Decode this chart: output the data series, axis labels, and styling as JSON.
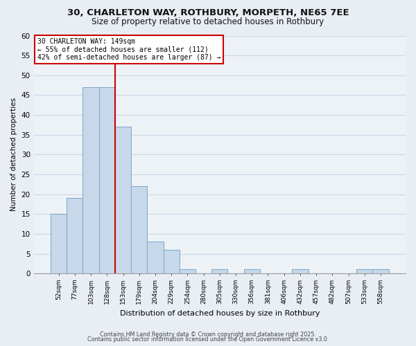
{
  "title": "30, CHARLETON WAY, ROTHBURY, MORPETH, NE65 7EE",
  "subtitle": "Size of property relative to detached houses in Rothbury",
  "xlabel": "Distribution of detached houses by size in Rothbury",
  "ylabel": "Number of detached properties",
  "bar_labels": [
    "52sqm",
    "77sqm",
    "103sqm",
    "128sqm",
    "153sqm",
    "179sqm",
    "204sqm",
    "229sqm",
    "254sqm",
    "280sqm",
    "305sqm",
    "330sqm",
    "356sqm",
    "381sqm",
    "406sqm",
    "432sqm",
    "457sqm",
    "482sqm",
    "507sqm",
    "533sqm",
    "558sqm"
  ],
  "bar_values": [
    15,
    19,
    47,
    47,
    37,
    22,
    8,
    6,
    1,
    0,
    1,
    0,
    1,
    0,
    0,
    1,
    0,
    0,
    0,
    1,
    1
  ],
  "bar_color": "#c6d8ea",
  "bar_edge_color": "#7ba7c8",
  "vline_color": "#cc0000",
  "annotation_title": "30 CHARLETON WAY: 149sqm",
  "annotation_line1": "← 55% of detached houses are smaller (112)",
  "annotation_line2": "42% of semi-detached houses are larger (87) →",
  "annotation_box_color": "white",
  "annotation_box_edge_color": "#cc0000",
  "ylim": [
    0,
    60
  ],
  "yticks": [
    0,
    5,
    10,
    15,
    20,
    25,
    30,
    35,
    40,
    45,
    50,
    55,
    60
  ],
  "footer1": "Contains HM Land Registry data © Crown copyright and database right 2025.",
  "footer2": "Contains public sector information licensed under the Open Government Licence v3.0.",
  "bg_color": "#e8eef4",
  "plot_bg_color": "#edf2f7",
  "grid_color": "#c8d8e8"
}
